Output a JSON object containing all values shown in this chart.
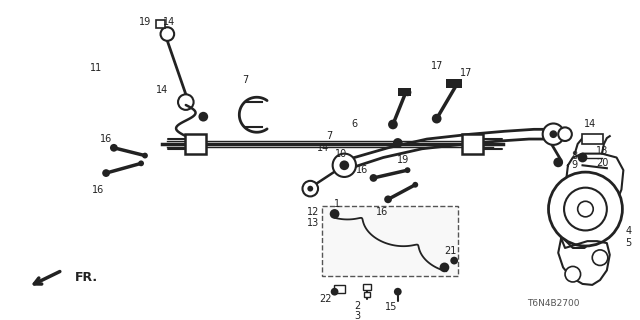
{
  "bg_color": "#ffffff",
  "dc": "#222222",
  "fig_width": 6.4,
  "fig_height": 3.2,
  "dpi": 100,
  "part_number": "T6N4B2700",
  "fr_label": "FR."
}
